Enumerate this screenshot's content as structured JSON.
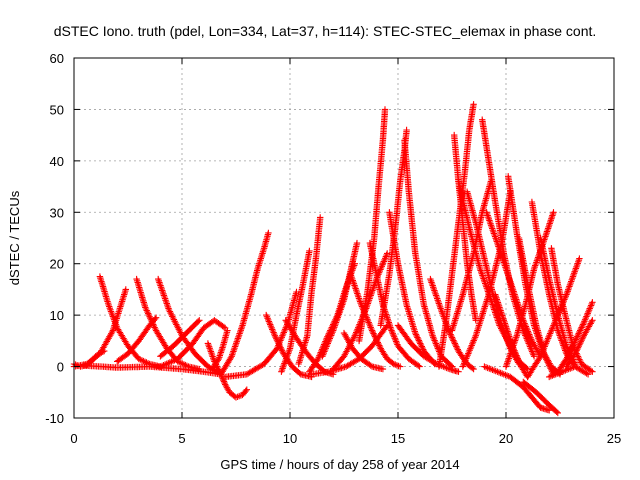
{
  "chart_data": {
    "type": "scatter",
    "title": "dSTEC Iono. truth (pdel, Lon=334, Lat=37, h=114): STEC-STEC_elemax in phase cont.",
    "xlabel": "GPS time / hours of day 258 of year 2014",
    "ylabel": "dSTEC  / TECUs",
    "xlim": [
      0,
      25
    ],
    "ylim": [
      -10,
      60
    ],
    "xticks": [
      0,
      5,
      10,
      15,
      20,
      25
    ],
    "yticks": [
      -10,
      0,
      10,
      20,
      30,
      40,
      50,
      60
    ],
    "grid": true,
    "legend": "none",
    "marker": "plus",
    "color": "#ff0000",
    "series": [
      {
        "x": [
          0.0,
          0.3,
          0.6,
          0.8,
          1.0,
          1.2,
          1.4
        ],
        "y": [
          0.5,
          0.0,
          0.3,
          1.0,
          2.0,
          2.6,
          3.0
        ]
      },
      {
        "x": [
          0.0,
          0.6,
          1.2,
          1.8,
          2.4
        ],
        "y": [
          0.0,
          0.5,
          2.5,
          7.0,
          15.0
        ]
      },
      {
        "x": [
          1.2,
          1.6,
          2.0,
          2.5,
          3.0,
          3.5,
          4.0
        ],
        "y": [
          17.5,
          12.0,
          7.5,
          4.0,
          1.5,
          0.5,
          0.0
        ]
      },
      {
        "x": [
          2.9,
          3.3,
          3.8,
          4.3,
          4.8,
          5.3,
          5.8
        ],
        "y": [
          17.0,
          11.5,
          7.0,
          3.5,
          1.0,
          0.0,
          -0.5
        ]
      },
      {
        "x": [
          2.0,
          2.5,
          3.0,
          3.5,
          3.8
        ],
        "y": [
          1.0,
          2.5,
          5.0,
          8.0,
          9.5
        ]
      },
      {
        "x": [
          3.9,
          4.4,
          5.0,
          5.6,
          6.2,
          6.6
        ],
        "y": [
          17.0,
          11.0,
          6.0,
          2.5,
          0.0,
          -1.0
        ]
      },
      {
        "x": [
          4.0,
          4.8,
          5.5,
          6.0,
          6.5,
          7.0
        ],
        "y": [
          0.0,
          1.5,
          4.5,
          7.5,
          9.0,
          7.5
        ]
      },
      {
        "x": [
          0.5,
          2.0,
          3.5,
          5.0,
          6.0,
          6.8
        ],
        "y": [
          0.2,
          -0.2,
          0.0,
          -0.5,
          -1.0,
          -1.5
        ]
      },
      {
        "x": [
          4.0,
          4.6,
          5.2,
          5.8
        ],
        "y": [
          2.0,
          4.0,
          6.5,
          9.0
        ]
      },
      {
        "x": [
          6.2,
          6.5,
          6.8,
          7.0,
          7.2,
          7.5,
          7.8,
          8.0
        ],
        "y": [
          4.5,
          1.0,
          -1.5,
          -3.5,
          -5.0,
          -6.0,
          -5.5,
          -4.5
        ]
      },
      {
        "x": [
          6.4,
          6.7,
          6.9,
          7.1
        ],
        "y": [
          -0.5,
          1.5,
          4.0,
          7.0
        ]
      },
      {
        "x": [
          6.8,
          7.3,
          7.8,
          8.2,
          8.5,
          8.8,
          9.0
        ],
        "y": [
          -1.5,
          2.0,
          8.0,
          14.0,
          19.0,
          23.0,
          26.0
        ]
      },
      {
        "x": [
          7.0,
          8.0,
          8.8,
          9.4,
          9.9,
          10.3
        ],
        "y": [
          -2.0,
          -1.5,
          0.5,
          3.5,
          8.5,
          14.5
        ]
      },
      {
        "x": [
          8.9,
          9.3,
          9.7,
          10.1,
          10.5,
          11.0
        ],
        "y": [
          10.0,
          6.0,
          2.5,
          0.0,
          -1.5,
          -2.0
        ]
      },
      {
        "x": [
          9.6,
          10.0,
          10.3,
          10.6,
          10.9
        ],
        "y": [
          -1.0,
          3.5,
          10.0,
          16.0,
          22.5
        ]
      },
      {
        "x": [
          9.8,
          10.3,
          10.8,
          11.2,
          11.6,
          12.0
        ],
        "y": [
          9.0,
          5.5,
          2.5,
          0.5,
          -1.0,
          -1.5
        ]
      },
      {
        "x": [
          10.4,
          10.8,
          11.0,
          11.2,
          11.4
        ],
        "y": [
          0.5,
          6.0,
          14.5,
          21.0,
          29.0
        ]
      },
      {
        "x": [
          10.9,
          11.3,
          11.7,
          12.2,
          12.6,
          13.0
        ],
        "y": [
          -1.0,
          1.5,
          5.5,
          10.0,
          15.5,
          20.0
        ]
      },
      {
        "x": [
          11.5,
          12.0,
          12.5,
          12.8,
          13.1
        ],
        "y": [
          2.0,
          7.0,
          13.0,
          18.5,
          24.0
        ]
      },
      {
        "x": [
          11.0,
          11.8,
          12.6,
          13.2,
          13.8,
          14.5
        ],
        "y": [
          -1.5,
          -1.0,
          0.0,
          1.5,
          4.0,
          8.0
        ]
      },
      {
        "x": [
          12.0,
          12.5,
          13.0,
          13.5,
          14.0,
          14.5
        ],
        "y": [
          -0.5,
          2.0,
          6.0,
          11.0,
          17.0,
          22.0
        ]
      },
      {
        "x": [
          12.5,
          12.9,
          13.3,
          13.8,
          14.3
        ],
        "y": [
          6.5,
          3.5,
          1.5,
          0.0,
          -0.5
        ]
      },
      {
        "x": [
          12.8,
          13.3,
          13.8,
          14.2,
          14.5,
          14.8,
          15.1
        ],
        "y": [
          18.0,
          12.0,
          7.0,
          3.5,
          1.5,
          0.5,
          0.0
        ]
      },
      {
        "x": [
          13.2,
          13.6,
          13.9,
          14.1,
          14.3,
          14.4
        ],
        "y": [
          5.0,
          15.0,
          25.0,
          35.0,
          44.0,
          50.0
        ]
      },
      {
        "x": [
          13.7,
          14.0,
          14.3,
          14.7,
          15.0,
          15.5,
          16.0
        ],
        "y": [
          24.0,
          18.0,
          12.0,
          7.0,
          4.0,
          1.5,
          0.0
        ]
      },
      {
        "x": [
          14.2,
          14.6,
          14.9,
          15.1,
          15.3,
          15.4
        ],
        "y": [
          8.0,
          18.0,
          28.0,
          36.0,
          42.0,
          46.0
        ]
      },
      {
        "x": [
          15.3,
          15.5,
          15.8,
          16.2,
          16.6,
          17.0,
          17.5
        ],
        "y": [
          44.0,
          34.0,
          22.0,
          12.0,
          6.0,
          2.0,
          0.0
        ]
      },
      {
        "x": [
          14.6,
          15.0,
          15.4,
          15.8,
          16.2,
          16.7
        ],
        "y": [
          30.0,
          20.0,
          12.0,
          6.5,
          3.0,
          0.5
        ]
      },
      {
        "x": [
          15.0,
          15.6,
          16.2,
          16.8,
          17.4,
          17.8
        ],
        "y": [
          8.0,
          4.5,
          2.0,
          0.5,
          -0.5,
          -1.0
        ]
      },
      {
        "x": [
          16.5,
          17.0,
          17.4,
          17.8,
          18.2,
          18.5
        ],
        "y": [
          17.0,
          11.0,
          6.5,
          3.0,
          0.5,
          -0.5
        ]
      },
      {
        "x": [
          16.9,
          17.2,
          17.5,
          17.8,
          18.1,
          18.3,
          18.5
        ],
        "y": [
          0.0,
          8.0,
          18.0,
          28.0,
          38.0,
          46.0,
          51.0
        ]
      },
      {
        "x": [
          17.6,
          17.8,
          18.0,
          18.2,
          18.4,
          18.6
        ],
        "y": [
          45.0,
          36.0,
          28.0,
          20.0,
          14.0,
          9.0
        ]
      },
      {
        "x": [
          17.8,
          18.3,
          18.8,
          19.3,
          19.7,
          20.2,
          20.6,
          21.0
        ],
        "y": [
          36.0,
          27.0,
          19.0,
          13.0,
          8.0,
          4.0,
          1.0,
          -0.5
        ]
      },
      {
        "x": [
          18.2,
          18.6,
          19.0,
          19.4,
          19.8,
          20.2,
          20.6
        ],
        "y": [
          34.0,
          28.0,
          21.0,
          14.0,
          8.0,
          3.5,
          0.5
        ]
      },
      {
        "x": [
          18.9,
          19.2,
          19.5,
          19.9,
          20.3,
          20.8,
          21.3
        ],
        "y": [
          48.0,
          40.0,
          32.0,
          22.0,
          14.0,
          7.0,
          2.0
        ]
      },
      {
        "x": [
          17.5,
          18.0,
          18.5,
          18.9,
          19.3
        ],
        "y": [
          7.0,
          14.0,
          22.0,
          30.0,
          36.0
        ]
      },
      {
        "x": [
          18.0,
          18.6,
          19.2,
          19.8,
          20.2
        ],
        "y": [
          0.0,
          6.0,
          14.0,
          24.0,
          34.0
        ]
      },
      {
        "x": [
          19.1,
          19.6,
          20.0,
          20.4,
          20.8,
          21.2,
          21.6
        ],
        "y": [
          30.0,
          24.0,
          19.0,
          14.0,
          9.0,
          5.0,
          2.0
        ]
      },
      {
        "x": [
          20.1,
          20.5,
          20.9,
          21.3,
          21.7,
          22.1,
          22.5
        ],
        "y": [
          37.0,
          26.0,
          16.0,
          8.0,
          3.0,
          0.0,
          -1.5
        ]
      },
      {
        "x": [
          19.0,
          19.6,
          20.2,
          20.8,
          21.2,
          21.6,
          22.0
        ],
        "y": [
          0.0,
          -1.0,
          -2.0,
          -4.0,
          -6.0,
          -8.0,
          -8.5
        ]
      },
      {
        "x": [
          19.5,
          19.9,
          20.3,
          20.7,
          21.0
        ],
        "y": [
          14.0,
          9.0,
          4.0,
          0.0,
          -2.0
        ]
      },
      {
        "x": [
          20.0,
          20.5,
          20.9,
          21.3,
          21.8,
          22.2
        ],
        "y": [
          0.0,
          6.0,
          12.0,
          19.0,
          25.0,
          30.0
        ]
      },
      {
        "x": [
          20.6,
          21.0,
          21.4,
          21.8,
          22.2
        ],
        "y": [
          25.0,
          16.0,
          8.0,
          2.0,
          -1.5
        ]
      },
      {
        "x": [
          21.2,
          21.6,
          22.0,
          22.4,
          22.8,
          23.2
        ],
        "y": [
          32.0,
          22.0,
          14.0,
          7.0,
          2.5,
          0.0
        ]
      },
      {
        "x": [
          21.6,
          22.0,
          22.4,
          22.8,
          23.2
        ],
        "y": [
          25.0,
          17.0,
          10.0,
          4.0,
          0.5
        ]
      },
      {
        "x": [
          22.1,
          22.4,
          22.8,
          23.1,
          23.5,
          24.0
        ],
        "y": [
          23.0,
          16.0,
          9.0,
          4.0,
          0.5,
          -1.0
        ]
      },
      {
        "x": [
          21.0,
          21.6,
          22.2,
          22.8,
          23.4
        ],
        "y": [
          -2.0,
          2.0,
          8.0,
          14.0,
          21.0
        ]
      },
      {
        "x": [
          22.0,
          22.6,
          23.2,
          23.8
        ],
        "y": [
          -2.0,
          -1.0,
          0.0,
          -1.5
        ]
      },
      {
        "x": [
          22.4,
          22.8,
          23.2,
          23.6,
          24.0
        ],
        "y": [
          -1.0,
          1.5,
          5.0,
          8.5,
          12.5
        ]
      },
      {
        "x": [
          22.8,
          23.2,
          23.6,
          24.0
        ],
        "y": [
          0.0,
          2.5,
          6.0,
          9.0
        ]
      },
      {
        "x": [
          20.8,
          21.4,
          22.0,
          22.4
        ],
        "y": [
          -3.0,
          -5.0,
          -7.5,
          -9.0
        ]
      }
    ]
  }
}
